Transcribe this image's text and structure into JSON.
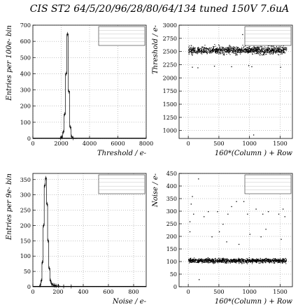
{
  "title": "CIS ST2 64/5/20/96/28/80/64/134 tuned 150V 7.6uA",
  "chart_data": [
    {
      "id": "threshold-hist",
      "type": "histogram",
      "xlabel": "Threshold / e-",
      "ylabel": "Entries per 100e- bin",
      "xlim": [
        0,
        8000
      ],
      "ylim": [
        0,
        700
      ],
      "xticks": [
        "0",
        "2000",
        "4000",
        "6000",
        "8000"
      ],
      "yticks": [
        "0",
        "100",
        "200",
        "300",
        "400",
        "500",
        "600",
        "700"
      ],
      "grid": true,
      "legend": "top-right",
      "bin_width": 100,
      "x": [
        1800,
        1900,
        2000,
        2100,
        2200,
        2300,
        2400,
        2500,
        2600,
        2700,
        2800,
        2900,
        3000
      ],
      "values": [
        0,
        2,
        8,
        40,
        150,
        400,
        645,
        290,
        70,
        10,
        2,
        0,
        0
      ]
    },
    {
      "id": "threshold-map",
      "type": "scatter",
      "xlabel": "160*(Column ) + Row",
      "ylabel": "Threshold / e-",
      "xlim": [
        -150,
        1700
      ],
      "ylim": [
        850,
        3000
      ],
      "xticks": [
        "0",
        "500",
        "1000",
        "1500"
      ],
      "yticks": [
        "1000",
        "1250",
        "1500",
        "1750",
        "2000",
        "2250",
        "2500",
        "2750",
        "3000"
      ],
      "grid": true,
      "legend": "top-right",
      "band": {
        "x_range": [
          0,
          1600
        ],
        "y_center": 2530,
        "y_spread": 120
      },
      "outliers": [
        [
          60,
          2210
        ],
        [
          150,
          2200
        ],
        [
          420,
          2230
        ],
        [
          700,
          2220
        ],
        [
          980,
          2240
        ],
        [
          1500,
          2210
        ],
        [
          1290,
          2790
        ],
        [
          880,
          2830
        ],
        [
          1030,
          2220
        ],
        [
          1060,
          925
        ]
      ]
    },
    {
      "id": "noise-hist",
      "type": "histogram",
      "xlabel": "Noise / e-",
      "ylabel": "Entries per 9e- bin",
      "xlim": [
        0,
        900
      ],
      "ylim": [
        0,
        370
      ],
      "xticks": [
        "0",
        "200",
        "400",
        "600",
        "800"
      ],
      "yticks": [
        "0",
        "50",
        "100",
        "150",
        "200",
        "250",
        "300",
        "350"
      ],
      "grid": true,
      "legend": "top-right",
      "bin_width": 9,
      "x": [
        45,
        54,
        63,
        72,
        81,
        90,
        99,
        108,
        117,
        126,
        135,
        144,
        153,
        162,
        171,
        180,
        200,
        240,
        300
      ],
      "values": [
        0,
        5,
        20,
        80,
        200,
        330,
        355,
        270,
        150,
        60,
        20,
        10,
        6,
        5,
        4,
        3,
        2,
        1,
        1
      ]
    },
    {
      "id": "noise-map",
      "type": "scatter",
      "xlabel": "160*(Column ) + Row",
      "ylabel": "Noise / e-",
      "xlim": [
        -150,
        1700
      ],
      "ylim": [
        0,
        450
      ],
      "xticks": [
        "0",
        "500",
        "1000",
        "1500"
      ],
      "yticks": [
        "0",
        "50",
        "100",
        "150",
        "200",
        "250",
        "300",
        "350",
        "400",
        "450"
      ],
      "grid": true,
      "legend": "top-right",
      "band": {
        "x_range": [
          0,
          1600
        ],
        "y_center": 105,
        "y_spread": 15
      },
      "outliers": [
        [
          20,
          260
        ],
        [
          40,
          330
        ],
        [
          60,
          360
        ],
        [
          80,
          290
        ],
        [
          20,
          220
        ],
        [
          160,
          430
        ],
        [
          320,
          300
        ],
        [
          470,
          300
        ],
        [
          640,
          290
        ],
        [
          700,
          320
        ],
        [
          780,
          340
        ],
        [
          900,
          340
        ],
        [
          960,
          290
        ],
        [
          1100,
          310
        ],
        [
          1210,
          290
        ],
        [
          1300,
          300
        ],
        [
          1470,
          290
        ],
        [
          1540,
          310
        ],
        [
          1570,
          280
        ],
        [
          380,
          200
        ],
        [
          500,
          220
        ],
        [
          620,
          180
        ],
        [
          1180,
          200
        ],
        [
          1510,
          190
        ],
        [
          820,
          170
        ],
        [
          1000,
          210
        ],
        [
          1260,
          230
        ],
        [
          170,
          30
        ],
        [
          250,
          280
        ],
        [
          560,
          250
        ]
      ]
    }
  ]
}
